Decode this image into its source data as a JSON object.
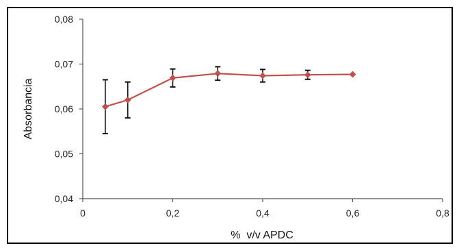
{
  "chart_data": {
    "type": "line",
    "title": "",
    "xlabel": "%  v/v APDC",
    "ylabel": "Absorbancia",
    "xlim": [
      0,
      0.8
    ],
    "ylim": [
      0.04,
      0.08
    ],
    "x_ticks": [
      "0",
      "0,2",
      "0,4",
      "0,6",
      "0,8"
    ],
    "y_ticks": [
      "0,04",
      "0,05",
      "0,06",
      "0,07",
      "0,08"
    ],
    "grid": false,
    "legend": "none",
    "series": [
      {
        "color": "#c0504d",
        "marker": "diamond",
        "points": [
          {
            "x": 0.05,
            "y": 0.0605,
            "err": 0.006
          },
          {
            "x": 0.1,
            "y": 0.062,
            "err": 0.004
          },
          {
            "x": 0.2,
            "y": 0.0669,
            "err": 0.002
          },
          {
            "x": 0.3,
            "y": 0.0679,
            "err": 0.0015
          },
          {
            "x": 0.4,
            "y": 0.0674,
            "err": 0.0014
          },
          {
            "x": 0.5,
            "y": 0.0676,
            "err": 0.001
          },
          {
            "x": 0.6,
            "y": 0.0677,
            "err": 0
          }
        ]
      }
    ]
  }
}
